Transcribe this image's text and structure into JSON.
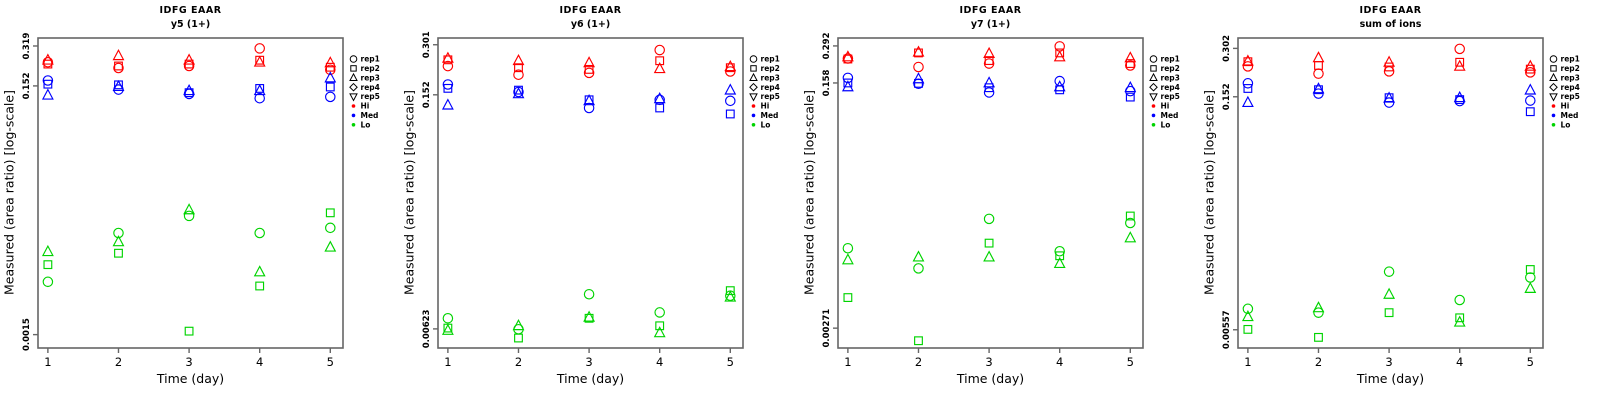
{
  "figure": {
    "xlabel": "Time (day)",
    "ylabel": "Measured (area ratio) [log-scale]",
    "background": "#ffffff",
    "box_color": "#666666",
    "text_color": "#000000"
  },
  "legend": {
    "shape_entries": [
      {
        "label": "rep1",
        "shape": "circle"
      },
      {
        "label": "rep2",
        "shape": "square"
      },
      {
        "label": "rep3",
        "shape": "triangle"
      },
      {
        "label": "rep4",
        "shape": "diamond"
      },
      {
        "label": "rep5",
        "shape": "triangle-down"
      }
    ],
    "group_entries": [
      {
        "label": "Hi",
        "color": "#ff0000"
      },
      {
        "label": "Med",
        "color": "#0000ff"
      },
      {
        "label": "Lo",
        "color": "#00d400"
      }
    ]
  },
  "chart_data": [
    {
      "type": "scatter",
      "title": "IDFG EAAR",
      "subtitle": "y5 (1+)",
      "xlabel": "Time (day)",
      "ylabel": "Measured (area ratio) [log-scale]",
      "x": [
        1,
        2,
        3,
        4,
        5
      ],
      "xlim": [
        0.86,
        5.18
      ],
      "yscale": "log",
      "ylim": [
        0.00117,
        0.37
      ],
      "y_ticks": [
        {
          "label": "0.319",
          "value": 0.319
        },
        {
          "label": "0.152",
          "value": 0.152
        },
        {
          "label": "0.0015",
          "value": 0.0015
        }
      ],
      "series": [
        {
          "name": "Hi",
          "color": "#ff0000",
          "reps": [
            {
              "rep": "rep1",
              "shape": "circle",
              "values": [
                0.236,
                0.212,
                0.22,
                0.305,
                0.205
              ]
            },
            {
              "rep": "rep2",
              "shape": "square",
              "values": [
                0.228,
                0.22,
                0.228,
                0.245,
                0.215
              ]
            },
            {
              "rep": "rep3",
              "shape": "triangle",
              "values": [
                0.245,
                0.266,
                0.245,
                0.236,
                0.233
              ]
            }
          ]
        },
        {
          "name": "Med",
          "color": "#0000ff",
          "reps": [
            {
              "rep": "rep1",
              "shape": "circle",
              "values": [
                0.168,
                0.142,
                0.131,
                0.121,
                0.124
              ]
            },
            {
              "rep": "rep2",
              "shape": "square",
              "values": [
                0.157,
                0.155,
                0.134,
                0.145,
                0.149
              ]
            },
            {
              "rep": "rep3",
              "shape": "triangle",
              "values": [
                0.128,
                0.15,
                0.139,
                0.139,
                0.176
              ]
            }
          ]
        },
        {
          "name": "Lo",
          "color": "#00d400",
          "reps": [
            {
              "rep": "rep1",
              "shape": "circle",
              "values": [
                0.004,
                0.0099,
                0.0136,
                0.0099,
                0.0109
              ]
            },
            {
              "rep": "rep2",
              "shape": "square",
              "values": [
                0.0055,
                0.0068,
                0.0016,
                0.0037,
                0.0144
              ]
            },
            {
              "rep": "rep3",
              "shape": "triangle",
              "values": [
                0.007,
                0.0084,
                0.0152,
                0.0048,
                0.0076
              ]
            }
          ]
        }
      ]
    },
    {
      "type": "scatter",
      "title": "IDFG EAAR",
      "subtitle": "y6 (1+)",
      "xlabel": "Time (day)",
      "ylabel": "Measured (area ratio) [log-scale]",
      "x": [
        1,
        2,
        3,
        4,
        5
      ],
      "xlim": [
        0.86,
        5.18
      ],
      "yscale": "log",
      "ylim": [
        0.0048,
        0.33
      ],
      "y_ticks": [
        {
          "label": "0.301",
          "value": 0.301
        },
        {
          "label": "0.152",
          "value": 0.152
        },
        {
          "label": "0.00623",
          "value": 0.00623
        }
      ],
      "series": [
        {
          "name": "Hi",
          "color": "#ff0000",
          "reps": [
            {
              "rep": "rep1",
              "shape": "circle",
              "values": [
                0.225,
                0.2,
                0.205,
                0.28,
                0.209
              ]
            },
            {
              "rep": "rep2",
              "shape": "square",
              "values": [
                0.245,
                0.22,
                0.215,
                0.242,
                0.22
              ]
            },
            {
              "rep": "rep3",
              "shape": "triangle",
              "values": [
                0.25,
                0.242,
                0.235,
                0.217,
                0.223
              ]
            }
          ]
        },
        {
          "name": "Med",
          "color": "#0000ff",
          "reps": [
            {
              "rep": "rep1",
              "shape": "circle",
              "values": [
                0.175,
                0.158,
                0.127,
                0.142,
                0.14
              ]
            },
            {
              "rep": "rep2",
              "shape": "square",
              "values": [
                0.166,
                0.162,
                0.142,
                0.127,
                0.117
              ]
            },
            {
              "rep": "rep3",
              "shape": "triangle",
              "values": [
                0.132,
                0.154,
                0.14,
                0.144,
                0.162
              ]
            }
          ]
        },
        {
          "name": "Lo",
          "color": "#00d400",
          "reps": [
            {
              "rep": "rep1",
              "shape": "circle",
              "values": [
                0.0072,
                0.0062,
                0.01,
                0.0078,
                0.0098
              ]
            },
            {
              "rep": "rep2",
              "shape": "square",
              "values": [
                0.0063,
                0.0055,
                0.0072,
                0.0065,
                0.0105
              ]
            },
            {
              "rep": "rep3",
              "shape": "triangle",
              "values": [
                0.0061,
                0.0065,
                0.0073,
                0.0059,
                0.0096
              ]
            }
          ]
        }
      ]
    },
    {
      "type": "scatter",
      "title": "IDFG EAAR",
      "subtitle": "y7 (1+)",
      "xlabel": "Time (day)",
      "ylabel": "Measured (area ratio) [log-scale]",
      "x": [
        1,
        2,
        3,
        4,
        5
      ],
      "xlim": [
        0.86,
        5.18
      ],
      "yscale": "log",
      "ylim": [
        0.00195,
        0.333
      ],
      "y_ticks": [
        {
          "label": "0.292",
          "value": 0.292
        },
        {
          "label": "0.158",
          "value": 0.158
        },
        {
          "label": "0.00271",
          "value": 0.00271
        }
      ],
      "series": [
        {
          "name": "Hi",
          "color": "#ff0000",
          "reps": [
            {
              "rep": "rep1",
              "shape": "circle",
              "values": [
                0.237,
                0.206,
                0.218,
                0.29,
                0.211
              ]
            },
            {
              "rep": "rep2",
              "shape": "square",
              "values": [
                0.235,
                0.26,
                0.229,
                0.26,
                0.218
              ]
            },
            {
              "rep": "rep3",
              "shape": "triangle",
              "values": [
                0.243,
                0.263,
                0.257,
                0.243,
                0.239
              ]
            }
          ]
        },
        {
          "name": "Med",
          "color": "#0000ff",
          "reps": [
            {
              "rep": "rep1",
              "shape": "circle",
              "values": [
                0.172,
                0.156,
                0.135,
                0.163,
                0.138
              ]
            },
            {
              "rep": "rep2",
              "shape": "square",
              "values": [
                0.158,
                0.157,
                0.146,
                0.141,
                0.125
              ]
            },
            {
              "rep": "rep3",
              "shape": "triangle",
              "values": [
                0.148,
                0.169,
                0.158,
                0.148,
                0.146
              ]
            }
          ]
        },
        {
          "name": "Lo",
          "color": "#00d400",
          "reps": [
            {
              "rep": "rep1",
              "shape": "circle",
              "values": [
                0.0102,
                0.0073,
                0.0166,
                0.0097,
                0.0155
              ]
            },
            {
              "rep": "rep2",
              "shape": "square",
              "values": [
                0.0045,
                0.0022,
                0.0111,
                0.009,
                0.0174
              ]
            },
            {
              "rep": "rep3",
              "shape": "triangle",
              "values": [
                0.0084,
                0.0088,
                0.0088,
                0.0079,
                0.0121
              ]
            }
          ]
        }
      ]
    },
    {
      "type": "scatter",
      "title": "IDFG EAAR",
      "subtitle": "sum of ions",
      "xlabel": "Time (day)",
      "ylabel": "Measured (area ratio) [log-scale]",
      "x": [
        1,
        2,
        3,
        4,
        5
      ],
      "xlim": [
        0.86,
        5.18
      ],
      "yscale": "log",
      "ylim": [
        0.0043,
        0.35
      ],
      "y_ticks": [
        {
          "label": "0.302",
          "value": 0.302
        },
        {
          "label": "0.152",
          "value": 0.152
        },
        {
          "label": "0.00557",
          "value": 0.00557
        }
      ],
      "series": [
        {
          "name": "Hi",
          "color": "#ff0000",
          "reps": [
            {
              "rep": "rep1",
              "shape": "circle",
              "values": [
                0.234,
                0.211,
                0.218,
                0.3,
                0.215
              ]
            },
            {
              "rep": "rep2",
              "shape": "square",
              "values": [
                0.25,
                0.237,
                0.232,
                0.248,
                0.225
              ]
            },
            {
              "rep": "rep3",
              "shape": "triangle",
              "values": [
                0.252,
                0.264,
                0.248,
                0.234,
                0.234
              ]
            }
          ]
        },
        {
          "name": "Med",
          "color": "#0000ff",
          "reps": [
            {
              "rep": "rep1",
              "shape": "circle",
              "values": [
                0.184,
                0.159,
                0.14,
                0.143,
                0.144
              ]
            },
            {
              "rep": "rep2",
              "shape": "square",
              "values": [
                0.171,
                0.168,
                0.15,
                0.146,
                0.123
              ]
            },
            {
              "rep": "rep3",
              "shape": "triangle",
              "values": [
                0.14,
                0.17,
                0.149,
                0.15,
                0.167
              ]
            }
          ]
        },
        {
          "name": "Lo",
          "color": "#00d400",
          "reps": [
            {
              "rep": "rep1",
              "shape": "circle",
              "values": [
                0.0075,
                0.0071,
                0.0127,
                0.0085,
                0.0117
              ]
            },
            {
              "rep": "rep2",
              "shape": "square",
              "values": [
                0.0056,
                0.005,
                0.0071,
                0.0066,
                0.0131
              ]
            },
            {
              "rep": "rep3",
              "shape": "triangle",
              "values": [
                0.0067,
                0.0076,
                0.0092,
                0.0062,
                0.01
              ]
            }
          ]
        }
      ]
    }
  ]
}
